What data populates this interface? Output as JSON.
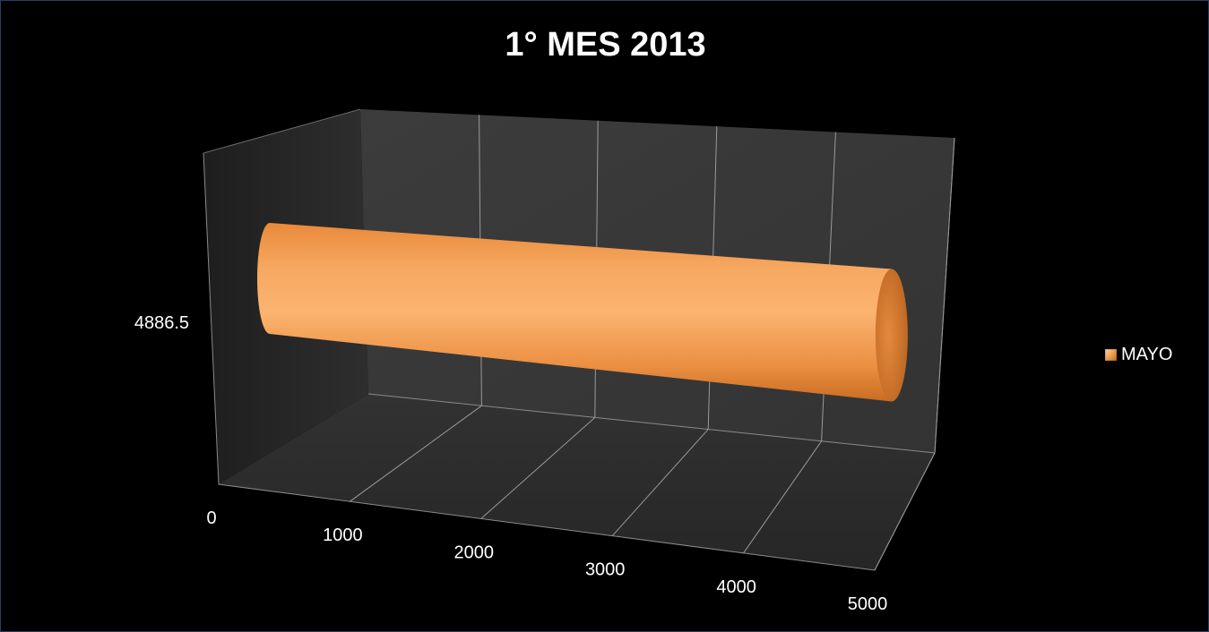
{
  "chart_data": {
    "type": "bar",
    "orientation": "horizontal",
    "style": "3d-cylinder",
    "title": "1° MES 2013",
    "categories": [
      "4886.5"
    ],
    "series": [
      {
        "name": "MAYO",
        "values": [
          4886.5
        ],
        "color": "#f39c4a"
      }
    ],
    "x_ticks": [
      "0",
      "1000",
      "2000",
      "3000",
      "4000",
      "5000"
    ],
    "xlim": [
      0,
      5000
    ],
    "grid": true,
    "legend": "right"
  },
  "colors": {
    "background": "#000000",
    "wall": "#3a3a3a",
    "floor": "#2b2b2b",
    "grid": "#9a9a9a",
    "bar": "#f39c4a"
  }
}
